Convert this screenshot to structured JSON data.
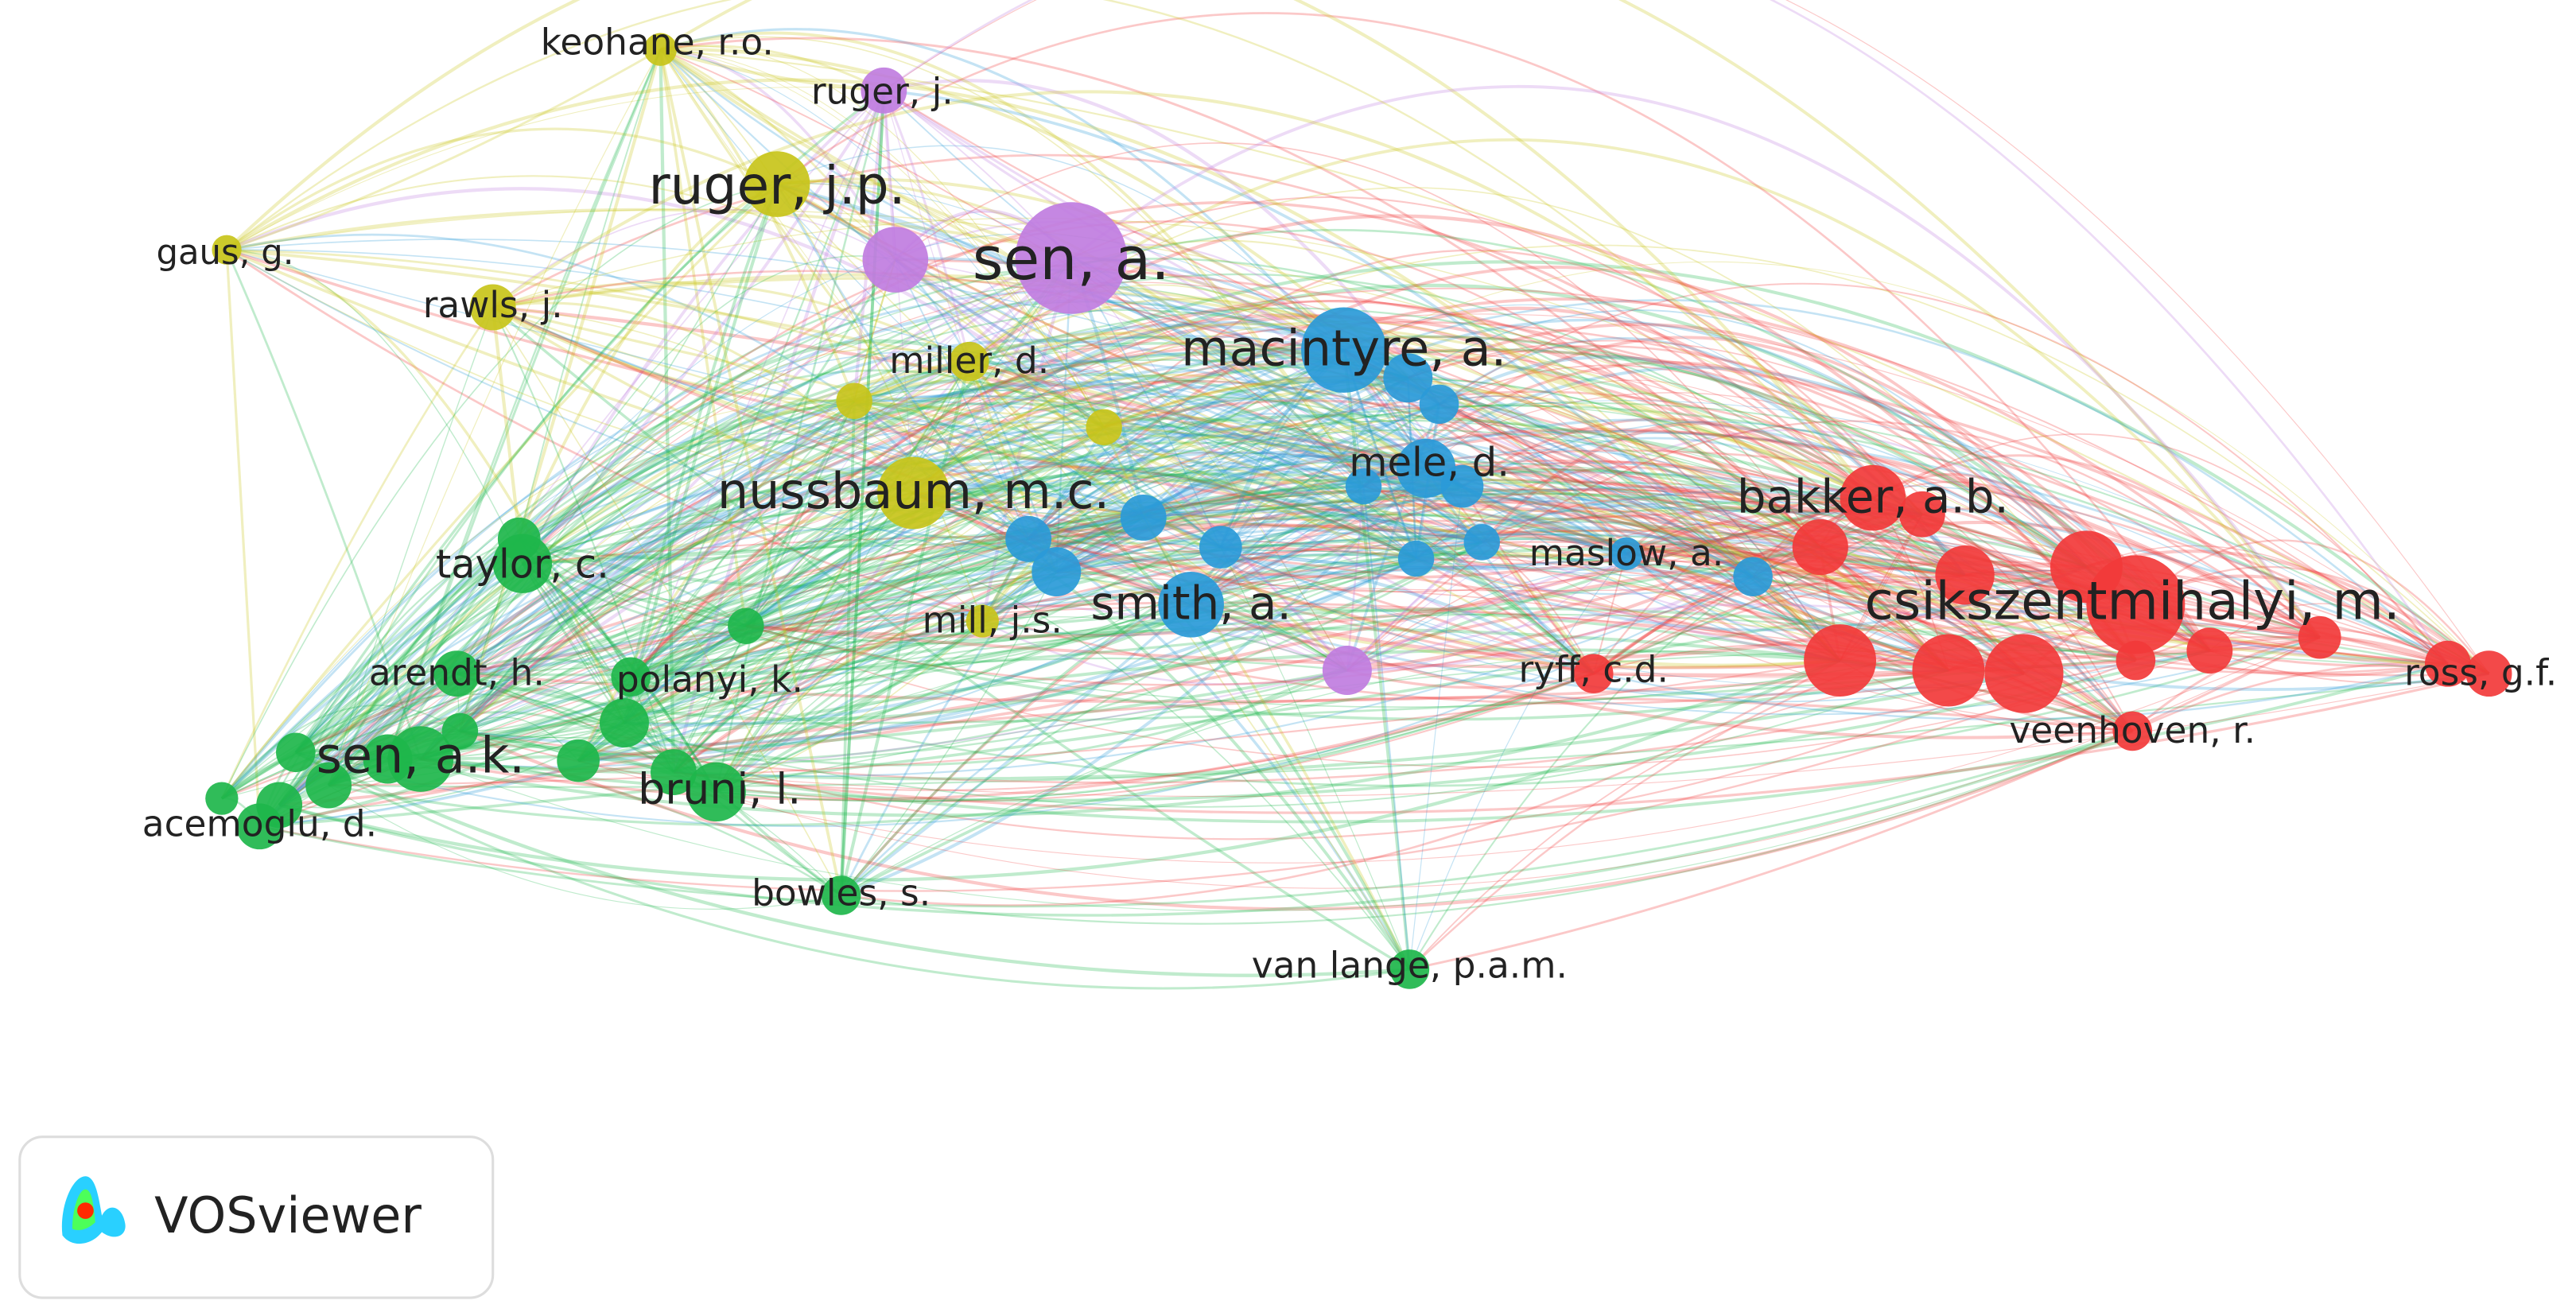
{
  "nodes": [
    {
      "label": "keohane, r.o."
    },
    {
      "label": "ruger, j."
    },
    {
      "label": "ruger, j.p."
    },
    {
      "label": "gaus, g."
    },
    {
      "label": "sen, a."
    },
    {
      "label": "rawls, j."
    },
    {
      "label": "miller, d."
    },
    {
      "label": "macintyre, a."
    },
    {
      "label": "mele, d."
    },
    {
      "label": "nussbaum, m.c."
    },
    {
      "label": "bakker, a.b."
    },
    {
      "label": "taylor, c."
    },
    {
      "label": "maslow, a."
    },
    {
      "label": "csikszentmihalyi, m."
    },
    {
      "label": "smith, a."
    },
    {
      "label": "mill, j.s."
    },
    {
      "label": "arendt, h."
    },
    {
      "label": "polanyi, k."
    },
    {
      "label": "ryff, c.d."
    },
    {
      "label": "ross, g.f."
    },
    {
      "label": "sen, a.k."
    },
    {
      "label": "bruni, l."
    },
    {
      "label": "veenhoven, r."
    },
    {
      "label": "acemoglu, d."
    },
    {
      "label": "bowles, s."
    },
    {
      "label": "van lange, p.a.m."
    }
  ],
  "logo": {
    "text": "VOSviewer"
  }
}
